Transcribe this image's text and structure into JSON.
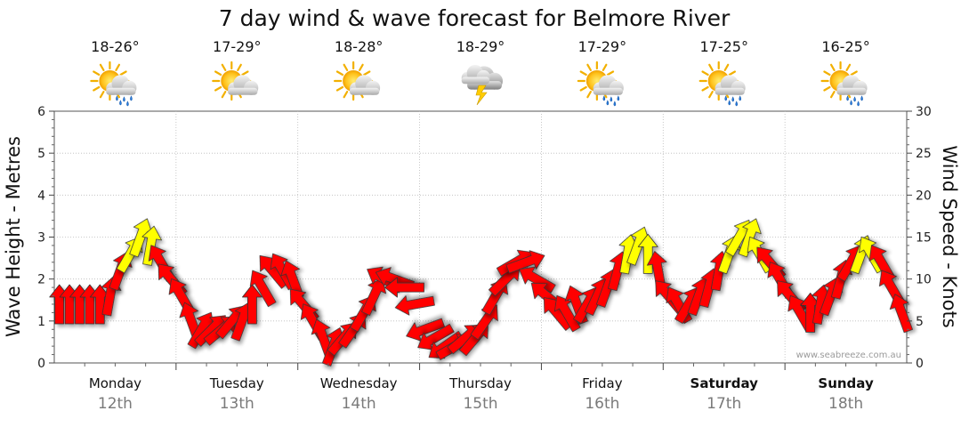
{
  "chart_data": {
    "type": "line",
    "title": "7 day wind & wave forecast for Belmore River",
    "ylabel_left": "Wave Height - Metres",
    "ylabel_right": "Wind Speed - Knots",
    "ylim_left": [
      0,
      6
    ],
    "ylim_right": [
      0,
      30
    ],
    "yticks_left": [
      "0",
      "1",
      "2",
      "3",
      "4",
      "5",
      "6"
    ],
    "yticks_right": [
      "0",
      "5",
      "10",
      "15",
      "20",
      "25",
      "30"
    ],
    "grid": true,
    "watermark": "www.seabreeze.com.au",
    "days": [
      {
        "name": "Monday",
        "date": "12th",
        "temp": "18-26°",
        "icon": "sun-cloud-rain-icon",
        "bold": false
      },
      {
        "name": "Tuesday",
        "date": "13th",
        "temp": "17-29°",
        "icon": "sun-cloud-icon",
        "bold": false
      },
      {
        "name": "Wednesday",
        "date": "14th",
        "temp": "18-28°",
        "icon": "sun-cloud-icon",
        "bold": false
      },
      {
        "name": "Thursday",
        "date": "15th",
        "temp": "18-29°",
        "icon": "storm-cloud-icon",
        "bold": false
      },
      {
        "name": "Friday",
        "date": "16th",
        "temp": "17-29°",
        "icon": "sun-cloud-rain-icon",
        "bold": false
      },
      {
        "name": "Saturday",
        "date": "17th",
        "temp": "17-25°",
        "icon": "sun-cloud-rain-icon",
        "bold": true
      },
      {
        "name": "Sunday",
        "date": "18th",
        "temp": "16-25°",
        "icon": "sun-cloud-rain-icon",
        "bold": true
      }
    ],
    "colors": {
      "wind_low": "#ff0000",
      "wind_high": "#ffff00",
      "arrow_outline": "#333333",
      "grid": "#bbbbbb"
    },
    "wind_series": {
      "name": "Wind Speed",
      "unit": "knots",
      "samples_per_day": 12,
      "values": [
        7,
        7,
        7,
        7,
        7,
        8,
        11,
        13,
        15,
        14,
        12,
        10,
        8,
        5,
        4,
        4,
        4,
        5,
        5,
        7,
        9,
        11,
        11,
        10,
        7,
        5,
        3,
        2,
        3,
        4,
        6,
        8,
        10,
        10,
        9,
        7,
        4,
        3,
        2,
        2,
        3,
        3,
        5,
        8,
        10,
        12,
        12,
        10,
        8,
        6,
        6,
        7,
        7,
        8,
        9,
        11,
        13,
        14,
        13,
        11,
        8,
        7,
        7,
        8,
        9,
        11,
        13,
        15,
        15,
        13,
        12,
        10,
        8,
        6,
        6,
        7,
        8,
        10,
        12,
        13,
        13,
        12,
        9,
        6
      ],
      "directions_deg": [
        0,
        0,
        0,
        0,
        0,
        10,
        20,
        30,
        20,
        10,
        330,
        320,
        330,
        340,
        30,
        45,
        50,
        40,
        20,
        0,
        330,
        320,
        330,
        340,
        320,
        330,
        340,
        20,
        40,
        35,
        30,
        25,
        300,
        290,
        270,
        260,
        250,
        240,
        235,
        60,
        50,
        40,
        35,
        30,
        45,
        60,
        70,
        300,
        310,
        320,
        330,
        340,
        30,
        25,
        20,
        15,
        10,
        20,
        0,
        350,
        320,
        330,
        30,
        20,
        15,
        10,
        20,
        30,
        20,
        330,
        320,
        330,
        320,
        330,
        0,
        10,
        20,
        15,
        30,
        20,
        330,
        330,
        330,
        340
      ]
    }
  }
}
